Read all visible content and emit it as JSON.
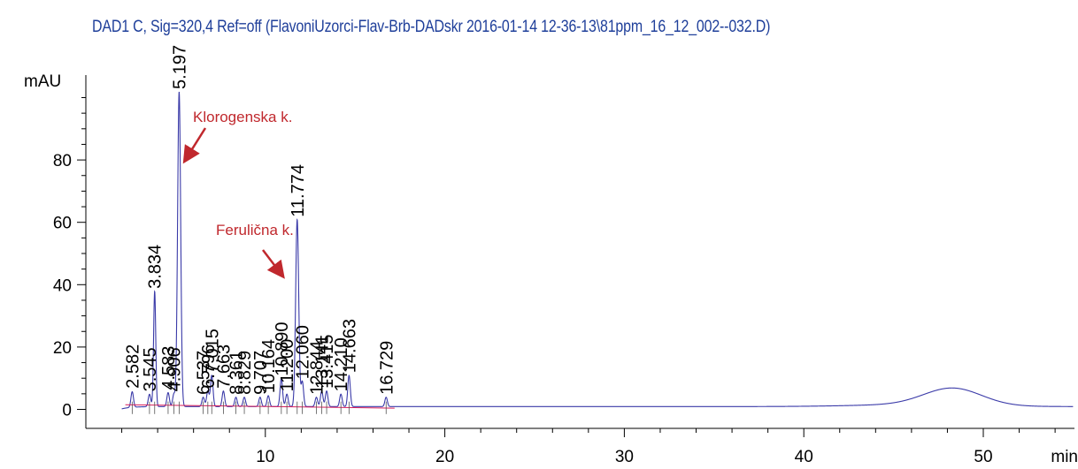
{
  "chart_data": {
    "type": "line",
    "title": "DAD1 C, Sig=320,4 Ref=off (FlavoniUzorci-Flav-Brb-DADskr 2016-01-14 12-36-13\\81ppm_16_12_002--032.D)",
    "xlabel": "min",
    "ylabel": "mAU",
    "xlim": [
      0,
      55
    ],
    "ylim": [
      -5,
      105
    ],
    "x_ticks": [
      10,
      20,
      30,
      40,
      50
    ],
    "y_ticks": [
      0,
      20,
      40,
      60,
      80
    ],
    "grid": false,
    "line_color": "#3a3aa8",
    "baseline_color": "#d81e5b",
    "peaks": [
      {
        "rt": 2.582,
        "height": 5,
        "label": "2.582"
      },
      {
        "rt": 3.545,
        "height": 4,
        "label": "3.545"
      },
      {
        "rt": 3.834,
        "height": 37,
        "label": "3.834"
      },
      {
        "rt": 4.583,
        "height": 4.5,
        "label": "4.583"
      },
      {
        "rt": 4.906,
        "height": 4,
        "label": "4.906"
      },
      {
        "rt": 5.197,
        "height": 101,
        "label": "5.197"
      },
      {
        "rt": 6.537,
        "height": 3,
        "label": "6.537"
      },
      {
        "rt": 6.796,
        "height": 5,
        "label": "6.796"
      },
      {
        "rt": 7.015,
        "height": 10,
        "label": "7.015"
      },
      {
        "rt": 7.663,
        "height": 5,
        "label": "7.663"
      },
      {
        "rt": 8.361,
        "height": 3,
        "label": "8.361"
      },
      {
        "rt": 8.829,
        "height": 3,
        "label": "8.829"
      },
      {
        "rt": 9.707,
        "height": 3,
        "label": "9.707"
      },
      {
        "rt": 10.164,
        "height": 3.5,
        "label": "10.164"
      },
      {
        "rt": 10.89,
        "height": 9,
        "label": "10.890"
      },
      {
        "rt": 11.2,
        "height": 4,
        "label": "11.200"
      },
      {
        "rt": 11.774,
        "height": 60,
        "label": "11.774"
      },
      {
        "rt": 12.06,
        "height": 8,
        "label": "12.060"
      },
      {
        "rt": 12.844,
        "height": 3,
        "label": "12.844"
      },
      {
        "rt": 13.141,
        "height": 5,
        "label": "13.141"
      },
      {
        "rt": 13.415,
        "height": 5,
        "label": "13.415"
      },
      {
        "rt": 14.21,
        "height": 4,
        "label": "14.210"
      },
      {
        "rt": 14.663,
        "height": 10,
        "label": "14.663"
      },
      {
        "rt": 16.729,
        "height": 3,
        "label": "16.729"
      }
    ],
    "broad_hump": {
      "center": 48.3,
      "height": 5.5
    },
    "annotations": [
      {
        "text": "Klorogenska k.",
        "target_rt": 5.197,
        "target_y": 80
      },
      {
        "text": "Ferulična k.",
        "target_rt": 10.89,
        "target_y": 43
      }
    ]
  }
}
